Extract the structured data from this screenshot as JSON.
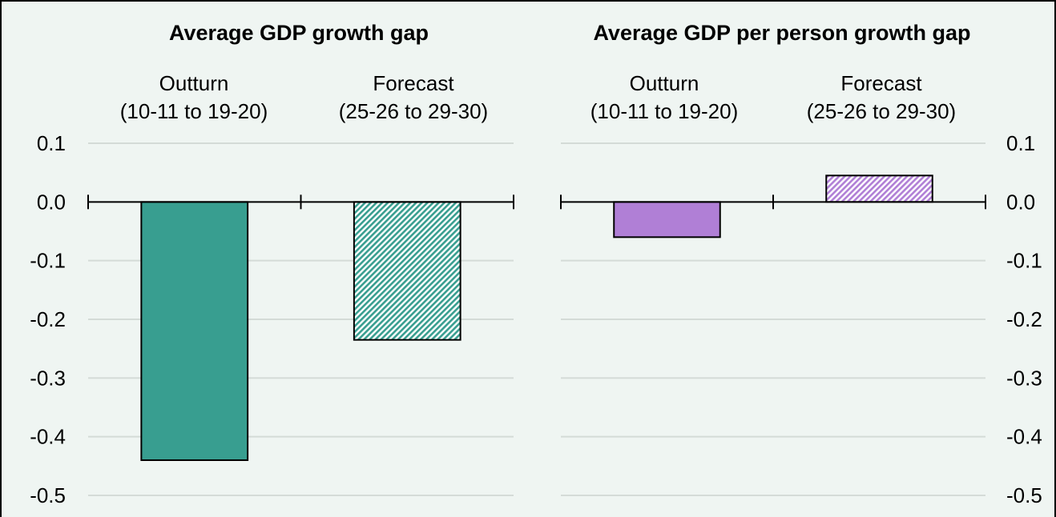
{
  "chart_data": [
    {
      "type": "bar",
      "title": "Average GDP growth gap",
      "categories": [
        [
          "Outturn",
          "(10-11 to 19-20)"
        ],
        [
          "Forecast",
          "(25-26 to 29-30)"
        ]
      ],
      "values": [
        -0.44,
        -0.235
      ],
      "styles": [
        "solid",
        "hatched"
      ],
      "color": "#389e90",
      "ylim": [
        -0.5,
        0.1
      ],
      "yticks": [
        "0.1",
        "0.0",
        "-0.1",
        "-0.2",
        "-0.3",
        "-0.4",
        "-0.5"
      ],
      "ytick_values": [
        0.1,
        0.0,
        -0.1,
        -0.2,
        -0.3,
        -0.4,
        -0.5
      ],
      "y_axis_side": "left",
      "grid": true
    },
    {
      "type": "bar",
      "title": "Average GDP per person growth gap",
      "categories": [
        [
          "Outturn",
          "(10-11 to 19-20)"
        ],
        [
          "Forecast",
          "(25-26 to 29-30)"
        ]
      ],
      "values": [
        -0.06,
        0.045
      ],
      "styles": [
        "solid",
        "hatched"
      ],
      "color": "#b07fd6",
      "ylim": [
        -0.5,
        0.1
      ],
      "yticks": [
        "0.1",
        "0.0",
        "-0.1",
        "-0.2",
        "-0.3",
        "-0.4",
        "-0.5"
      ],
      "ytick_values": [
        0.1,
        0.0,
        -0.1,
        -0.2,
        -0.3,
        -0.4,
        -0.5
      ],
      "y_axis_side": "right",
      "grid": true
    }
  ]
}
